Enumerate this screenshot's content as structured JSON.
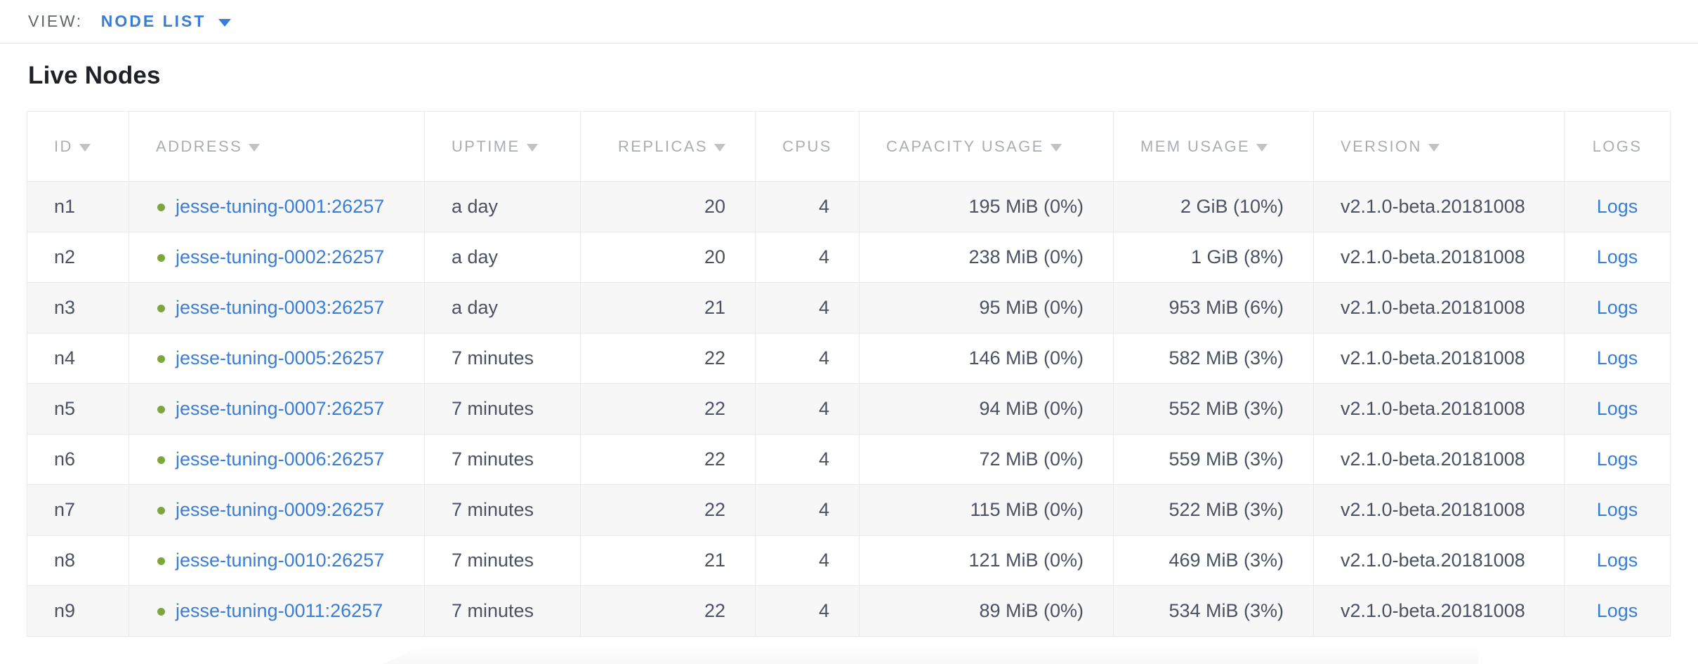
{
  "view_bar": {
    "label": "VIEW:",
    "selected_view": "NODE LIST",
    "caret_icon": "caret-down-icon"
  },
  "page": {
    "title": "Live Nodes"
  },
  "colors": {
    "accent": "#3a7dd6",
    "link": "#3a7dd6",
    "healthy": "#7da63c",
    "header-text": "#a9aeb4",
    "body-text": "#4a5262",
    "row-alt": "#f7f7f8"
  },
  "table": {
    "columns": [
      {
        "label": "ID",
        "sorted": true
      },
      {
        "label": "ADDRESS",
        "sorted": true
      },
      {
        "label": "UPTIME",
        "sorted": true
      },
      {
        "label": "REPLICAS",
        "sorted": true
      },
      {
        "label": "CPUS",
        "sorted": false
      },
      {
        "label": "CAPACITY USAGE",
        "sorted": true
      },
      {
        "label": "MEM USAGE",
        "sorted": true
      },
      {
        "label": "VERSION",
        "sorted": true
      },
      {
        "label": "LOGS",
        "sorted": false
      }
    ],
    "rows": [
      {
        "id": "n1",
        "status": "healthy",
        "address": "jesse-tuning-0001:26257",
        "uptime": "a day",
        "replicas": "20",
        "cpus": "4",
        "capacity_usage": "195 MiB (0%)",
        "mem_usage": "2 GiB (10%)",
        "version": "v2.1.0-beta.20181008",
        "logs_label": "Logs"
      },
      {
        "id": "n2",
        "status": "healthy",
        "address": "jesse-tuning-0002:26257",
        "uptime": "a day",
        "replicas": "20",
        "cpus": "4",
        "capacity_usage": "238 MiB (0%)",
        "mem_usage": "1 GiB (8%)",
        "version": "v2.1.0-beta.20181008",
        "logs_label": "Logs"
      },
      {
        "id": "n3",
        "status": "healthy",
        "address": "jesse-tuning-0003:26257",
        "uptime": "a day",
        "replicas": "21",
        "cpus": "4",
        "capacity_usage": "95 MiB (0%)",
        "mem_usage": "953 MiB (6%)",
        "version": "v2.1.0-beta.20181008",
        "logs_label": "Logs"
      },
      {
        "id": "n4",
        "status": "healthy",
        "address": "jesse-tuning-0005:26257",
        "uptime": "7 minutes",
        "replicas": "22",
        "cpus": "4",
        "capacity_usage": "146 MiB (0%)",
        "mem_usage": "582 MiB (3%)",
        "version": "v2.1.0-beta.20181008",
        "logs_label": "Logs"
      },
      {
        "id": "n5",
        "status": "healthy",
        "address": "jesse-tuning-0007:26257",
        "uptime": "7 minutes",
        "replicas": "22",
        "cpus": "4",
        "capacity_usage": "94 MiB (0%)",
        "mem_usage": "552 MiB (3%)",
        "version": "v2.1.0-beta.20181008",
        "logs_label": "Logs"
      },
      {
        "id": "n6",
        "status": "healthy",
        "address": "jesse-tuning-0006:26257",
        "uptime": "7 minutes",
        "replicas": "22",
        "cpus": "4",
        "capacity_usage": "72 MiB (0%)",
        "mem_usage": "559 MiB (3%)",
        "version": "v2.1.0-beta.20181008",
        "logs_label": "Logs"
      },
      {
        "id": "n7",
        "status": "healthy",
        "address": "jesse-tuning-0009:26257",
        "uptime": "7 minutes",
        "replicas": "22",
        "cpus": "4",
        "capacity_usage": "115 MiB (0%)",
        "mem_usage": "522 MiB (3%)",
        "version": "v2.1.0-beta.20181008",
        "logs_label": "Logs"
      },
      {
        "id": "n8",
        "status": "healthy",
        "address": "jesse-tuning-0010:26257",
        "uptime": "7 minutes",
        "replicas": "21",
        "cpus": "4",
        "capacity_usage": "121 MiB (0%)",
        "mem_usage": "469 MiB (3%)",
        "version": "v2.1.0-beta.20181008",
        "logs_label": "Logs"
      },
      {
        "id": "n9",
        "status": "healthy",
        "address": "jesse-tuning-0011:26257",
        "uptime": "7 minutes",
        "replicas": "22",
        "cpus": "4",
        "capacity_usage": "89 MiB (0%)",
        "mem_usage": "534 MiB (3%)",
        "version": "v2.1.0-beta.20181008",
        "logs_label": "Logs"
      }
    ]
  }
}
